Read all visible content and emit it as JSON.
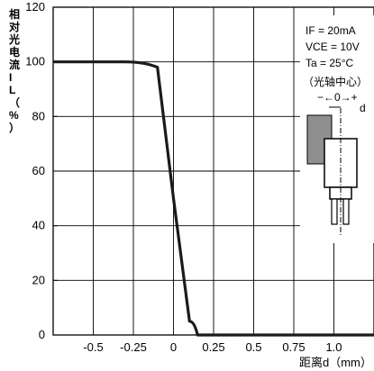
{
  "chart_data": {
    "type": "line",
    "ylabel": "相对光电流IL（%）",
    "xlabel": "距离d（mm）",
    "xlim": [
      -0.75,
      1.25
    ],
    "ylim": [
      0,
      120
    ],
    "x_ticks": [
      -0.5,
      -0.25,
      0,
      0.25,
      0.5,
      0.75,
      1.0
    ],
    "x_tick_labels": [
      "-0.5",
      "-0.25",
      "0",
      "0.25",
      "0.5",
      "0.75",
      "1.0"
    ],
    "y_ticks": [
      0,
      20,
      40,
      60,
      80,
      100,
      120
    ],
    "y_tick_labels": [
      "0",
      "20",
      "40",
      "60",
      "80",
      "100",
      "120"
    ],
    "grid": true,
    "series": [
      {
        "x": [
          -0.75,
          -0.3,
          -0.1,
          0.0,
          0.1,
          0.15,
          1.25
        ],
        "y": [
          100,
          100,
          98,
          50,
          5,
          0,
          0
        ]
      }
    ],
    "annotations": {
      "conditions": [
        "IF = 20mA",
        "VCE = 10V",
        "Ta = 25°C"
      ],
      "optical_axis": "（光轴中心）",
      "arrow_label": "−←0→+",
      "d_label": "d"
    }
  }
}
